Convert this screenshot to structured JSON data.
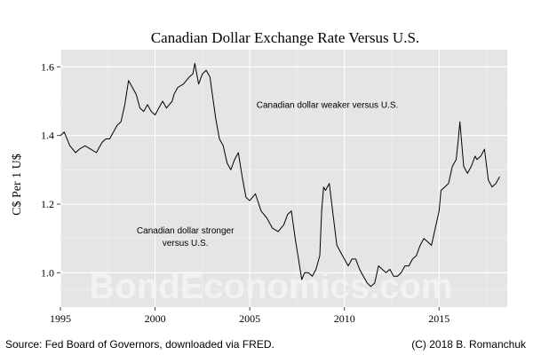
{
  "chart_data": {
    "type": "line",
    "title": "Canadian Dollar Exchange Rate Versus U.S.",
    "xlabel": "",
    "ylabel": "C$ Per 1 U$",
    "xlim": [
      1995,
      2018.6
    ],
    "ylim": [
      0.9,
      1.65
    ],
    "x_ticks": [
      1995,
      2000,
      2005,
      2010,
      2015
    ],
    "y_ticks": [
      1.0,
      1.2,
      1.4,
      1.6
    ],
    "y_tick_labels": [
      "1.0",
      "1.2",
      "1.4",
      "1.6"
    ],
    "grid": true,
    "legend": "none",
    "background": "#e5e5e5",
    "line_color": "#000000",
    "annotations": [
      {
        "text": "Canadian dollar weaker versus U.S.",
        "x": 2009.1,
        "y": 1.48
      },
      {
        "text": "Canadian dollar stronger",
        "x": 2001.6,
        "y": 1.115
      },
      {
        "text": "versus U.S.",
        "x": 2001.6,
        "y": 1.078
      }
    ],
    "watermark": "BondEconomics.com",
    "source": "Source: Fed Board of Governors, downloaded via FRED.",
    "credit": "(C) 2018 B. Romanchuk",
    "series": [
      {
        "x": [
          1995.0,
          1995.2,
          1995.5,
          1995.8,
          1996.0,
          1996.3,
          1996.6,
          1996.9,
          1997.2,
          1997.4,
          1997.6,
          1997.8,
          1998.0,
          1998.2,
          1998.4,
          1998.6,
          1998.8,
          1999.0,
          1999.2,
          1999.4,
          1999.6,
          1999.8,
          2000.0,
          2000.2,
          2000.4,
          2000.6,
          2000.9,
          2001.0,
          2001.2,
          2001.5,
          2001.8,
          2002.0,
          2002.1,
          2002.3,
          2002.5,
          2002.7,
          2002.9,
          2003.0,
          2003.2,
          2003.4,
          2003.6,
          2003.8,
          2004.0,
          2004.2,
          2004.4,
          2004.6,
          2004.8,
          2005.0,
          2005.3,
          2005.6,
          2005.9,
          2006.2,
          2006.5,
          2006.8,
          2007.0,
          2007.2,
          2007.4,
          2007.6,
          2007.75,
          2007.9,
          2008.1,
          2008.3,
          2008.5,
          2008.7,
          2008.8,
          2008.9,
          2009.0,
          2009.2,
          2009.4,
          2009.6,
          2009.8,
          2010.0,
          2010.2,
          2010.4,
          2010.6,
          2010.8,
          2011.0,
          2011.2,
          2011.4,
          2011.6,
          2011.8,
          2012.0,
          2012.2,
          2012.4,
          2012.6,
          2012.8,
          2013.0,
          2013.2,
          2013.4,
          2013.6,
          2013.8,
          2014.0,
          2014.2,
          2014.4,
          2014.6,
          2014.8,
          2015.0,
          2015.1,
          2015.3,
          2015.5,
          2015.7,
          2015.9,
          2016.0,
          2016.1,
          2016.3,
          2016.5,
          2016.7,
          2016.9,
          2017.0,
          2017.2,
          2017.4,
          2017.6,
          2017.8,
          2018.0,
          2018.2
        ],
        "y": [
          1.4,
          1.41,
          1.37,
          1.35,
          1.36,
          1.37,
          1.36,
          1.35,
          1.38,
          1.39,
          1.39,
          1.41,
          1.43,
          1.44,
          1.49,
          1.56,
          1.54,
          1.52,
          1.48,
          1.47,
          1.49,
          1.47,
          1.46,
          1.48,
          1.5,
          1.48,
          1.5,
          1.52,
          1.54,
          1.55,
          1.57,
          1.58,
          1.61,
          1.55,
          1.58,
          1.59,
          1.57,
          1.53,
          1.45,
          1.39,
          1.37,
          1.32,
          1.3,
          1.33,
          1.35,
          1.28,
          1.22,
          1.21,
          1.23,
          1.18,
          1.16,
          1.13,
          1.12,
          1.14,
          1.17,
          1.18,
          1.1,
          1.03,
          0.98,
          1.0,
          1.0,
          0.99,
          1.01,
          1.05,
          1.18,
          1.25,
          1.24,
          1.26,
          1.17,
          1.08,
          1.06,
          1.04,
          1.02,
          1.04,
          1.04,
          1.01,
          0.99,
          0.97,
          0.96,
          0.97,
          1.02,
          1.01,
          1.0,
          1.01,
          0.99,
          0.99,
          1.0,
          1.02,
          1.02,
          1.04,
          1.05,
          1.08,
          1.1,
          1.09,
          1.08,
          1.13,
          1.18,
          1.24,
          1.25,
          1.26,
          1.31,
          1.33,
          1.38,
          1.44,
          1.31,
          1.29,
          1.31,
          1.34,
          1.33,
          1.34,
          1.36,
          1.27,
          1.25,
          1.26,
          1.28
        ]
      }
    ]
  }
}
